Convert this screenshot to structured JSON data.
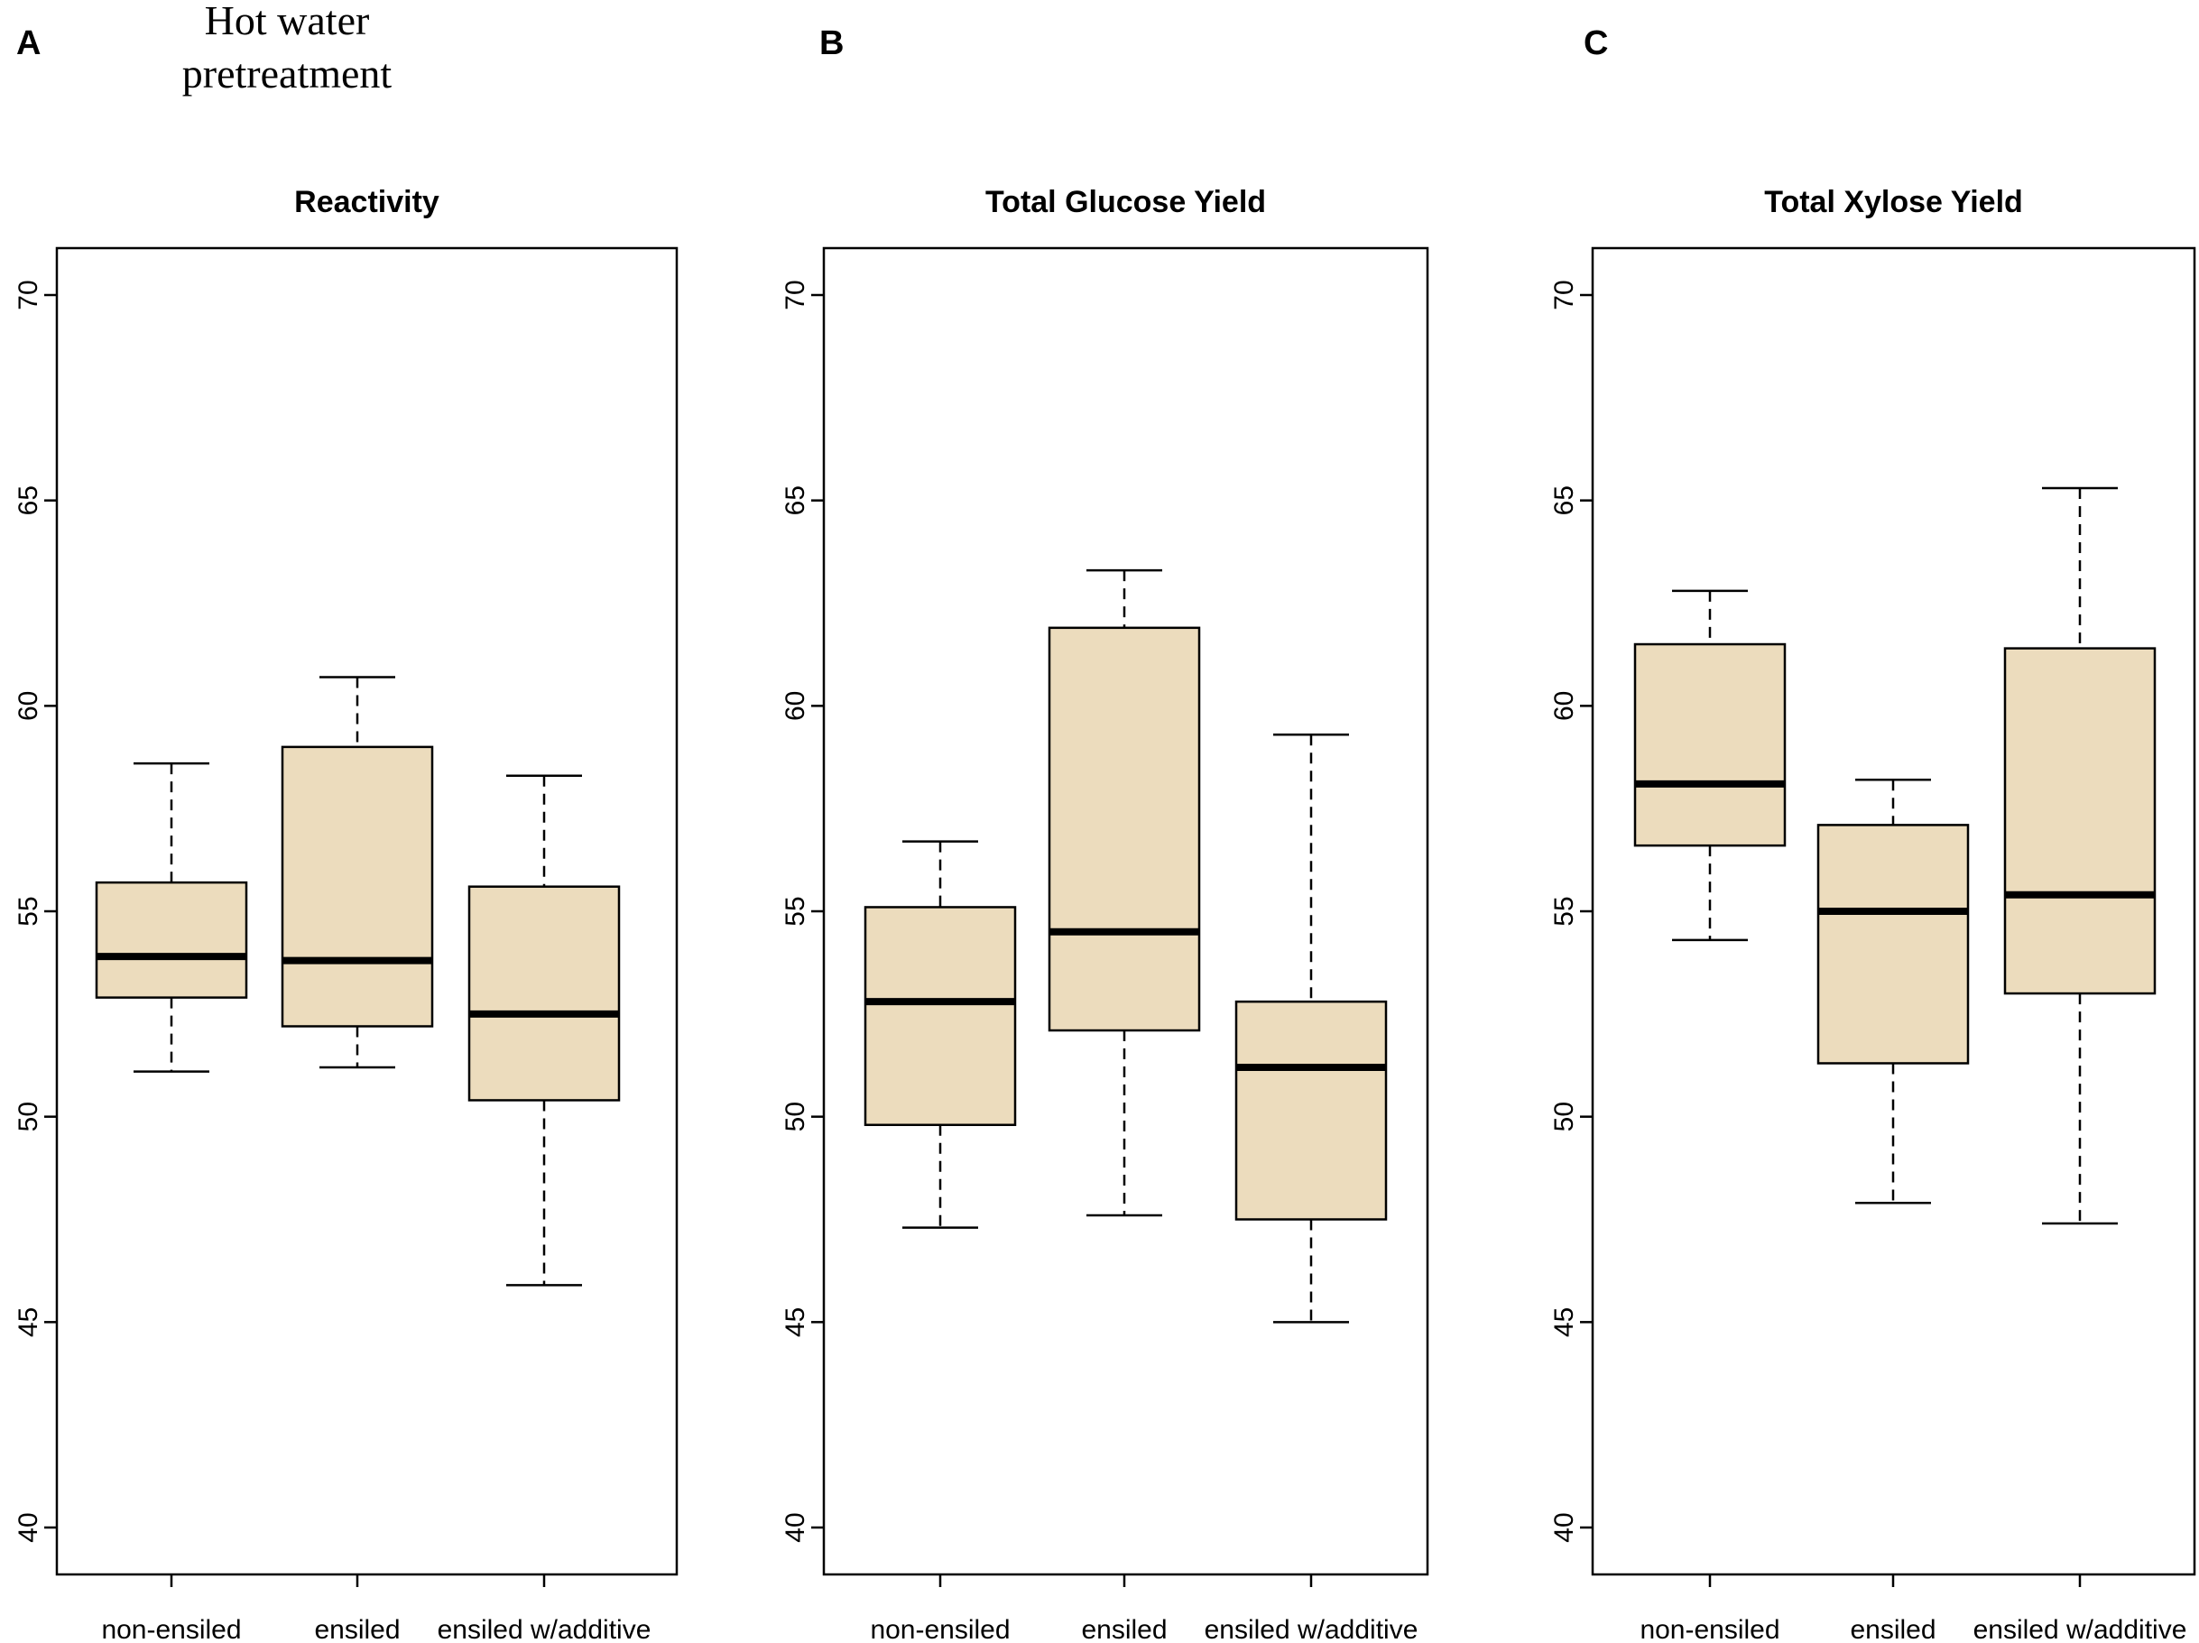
{
  "figure_note": [
    "Hot water",
    "pretreatment"
  ],
  "colors": {
    "box_fill": "#ecdcbd",
    "stroke": "#000000",
    "background": "#ffffff"
  },
  "chart_data": [
    {
      "type": "boxplot",
      "panel": "A",
      "title": "Reactivity",
      "xlabel": "",
      "ylabel": "",
      "ylim": [
        40,
        71
      ],
      "yticks": [
        40,
        45,
        50,
        55,
        60,
        65,
        70
      ],
      "categories": [
        "non-ensiled",
        "ensiled",
        "ensiled w/additive"
      ],
      "boxes": [
        {
          "category": "non-ensiled",
          "whisker_low": 51.1,
          "q1": 52.9,
          "median": 53.9,
          "q3": 55.7,
          "whisker_high": 58.6
        },
        {
          "category": "ensiled",
          "whisker_low": 51.2,
          "q1": 52.2,
          "median": 53.8,
          "q3": 59.0,
          "whisker_high": 60.7
        },
        {
          "category": "ensiled w/additive",
          "whisker_low": 45.9,
          "q1": 50.4,
          "median": 52.5,
          "q3": 55.6,
          "whisker_high": 58.3
        }
      ]
    },
    {
      "type": "boxplot",
      "panel": "B",
      "title": "Total Glucose Yield",
      "xlabel": "",
      "ylabel": "",
      "ylim": [
        40,
        71
      ],
      "yticks": [
        40,
        45,
        50,
        55,
        60,
        65,
        70
      ],
      "categories": [
        "non-ensiled",
        "ensiled",
        "ensiled w/additive"
      ],
      "boxes": [
        {
          "category": "non-ensiled",
          "whisker_low": 47.3,
          "q1": 49.8,
          "median": 52.8,
          "q3": 55.1,
          "whisker_high": 56.7
        },
        {
          "category": "ensiled",
          "whisker_low": 47.6,
          "q1": 52.1,
          "median": 54.5,
          "q3": 61.9,
          "whisker_high": 63.3
        },
        {
          "category": "ensiled w/additive",
          "whisker_low": 45.0,
          "q1": 47.5,
          "median": 51.2,
          "q3": 52.8,
          "whisker_high": 59.3
        }
      ]
    },
    {
      "type": "boxplot",
      "panel": "C",
      "title": "Total Xylose Yield",
      "xlabel": "",
      "ylabel": "",
      "ylim": [
        40,
        71
      ],
      "yticks": [
        40,
        45,
        50,
        55,
        60,
        65,
        70
      ],
      "categories": [
        "non-ensiled",
        "ensiled",
        "ensiled w/additive"
      ],
      "boxes": [
        {
          "category": "non-ensiled",
          "whisker_low": 54.3,
          "q1": 56.6,
          "median": 58.1,
          "q3": 61.5,
          "whisker_high": 62.8
        },
        {
          "category": "ensiled",
          "whisker_low": 47.9,
          "q1": 51.3,
          "median": 55.0,
          "q3": 57.1,
          "whisker_high": 58.2
        },
        {
          "category": "ensiled w/additive",
          "whisker_low": 47.4,
          "q1": 53.0,
          "median": 55.4,
          "q3": 61.4,
          "whisker_high": 65.3
        }
      ]
    }
  ]
}
